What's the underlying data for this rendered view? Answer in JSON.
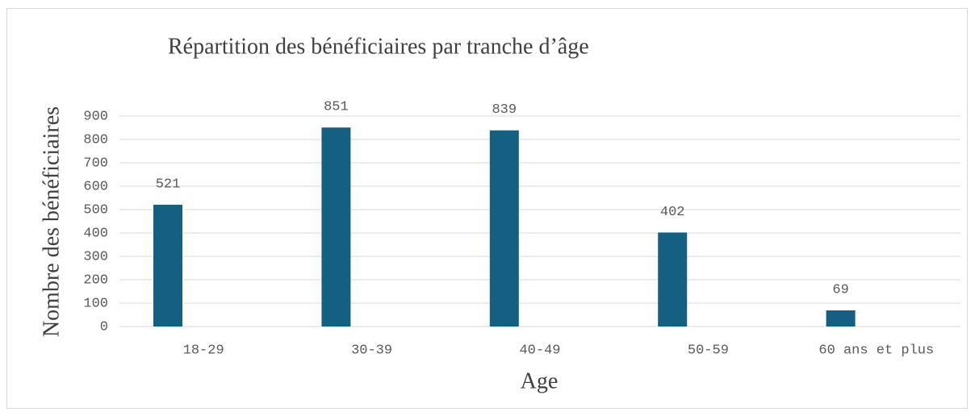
{
  "chart_data": {
    "type": "bar",
    "title": "Répartition des bénéficiaires par tranche d’âge",
    "x_label": "Age",
    "y_label": "Nombre des bénéficiaires",
    "categories": [
      "18-29",
      "30-39",
      "40-49",
      "50-59",
      "60 ans et plus"
    ],
    "values": [
      521,
      851,
      839,
      402,
      69
    ],
    "color": "#156082",
    "ylim": [
      0,
      900
    ],
    "yticks": [
      0,
      100,
      200,
      300,
      400,
      500,
      600,
      700,
      800,
      900
    ],
    "grid": true
  }
}
